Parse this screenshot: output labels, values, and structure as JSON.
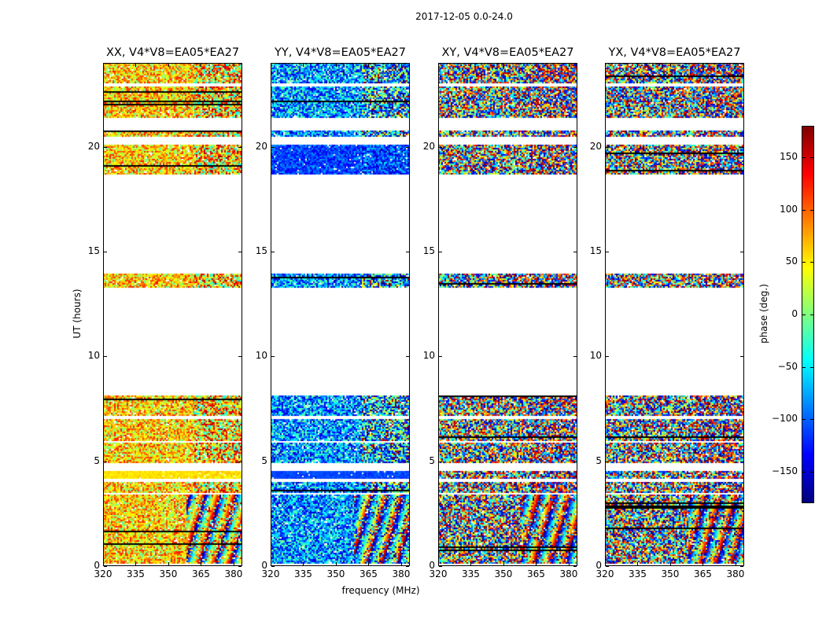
{
  "chart_data": {
    "type": "heatmap",
    "title": "2017-12-05 0.0-24.0",
    "xlabel": "frequency (MHz)",
    "ylabel": "UT (hours)",
    "xlim": [
      320,
      384
    ],
    "ylim": [
      0,
      24
    ],
    "xticks": [
      320,
      335,
      350,
      365,
      380
    ],
    "yticks": [
      0,
      5,
      10,
      15,
      20
    ],
    "panels": [
      {
        "title": "XX, V4*V8=EA05*EA27",
        "phase_mean": 60,
        "phase_spread": 70,
        "band_override": [
          {
            "range": [
              4.1,
              4.5
            ],
            "mean": 55,
            "spread": 10
          }
        ]
      },
      {
        "title": "YY, V4*V8=EA05*EA27",
        "phase_mean": -80,
        "phase_spread": 80,
        "band_override": [
          {
            "range": [
              4.1,
              4.5
            ],
            "mean": -110,
            "spread": 10
          },
          {
            "range": [
              18.7,
              20.1
            ],
            "mean": -110,
            "spread": 35
          }
        ]
      },
      {
        "title": "XY, V4*V8=EA05*EA27",
        "phase_mean": 0,
        "phase_spread": 180,
        "band_override": []
      },
      {
        "title": "YX, V4*V8=EA05*EA27",
        "phase_mean": 0,
        "phase_spread": 180,
        "band_override": []
      }
    ],
    "data_intervals_hours": [
      [
        0.05,
        3.35
      ],
      [
        3.45,
        4.0
      ],
      [
        4.1,
        4.5
      ],
      [
        4.85,
        5.85
      ],
      [
        5.95,
        7.0
      ],
      [
        7.1,
        8.1
      ],
      [
        13.3,
        13.95
      ],
      [
        18.7,
        20.1
      ],
      [
        20.5,
        20.8
      ],
      [
        21.4,
        22.9
      ],
      [
        23.05,
        24.0
      ]
    ],
    "colorbar": {
      "label": "phase (deg.)",
      "range": [
        -180,
        180
      ],
      "ticks": [
        -150,
        -100,
        -50,
        0,
        50,
        100,
        150
      ],
      "tick_labels": [
        "−150",
        "−100",
        "−50",
        "0",
        "50",
        "100",
        "150"
      ],
      "colormap": "jet"
    }
  }
}
